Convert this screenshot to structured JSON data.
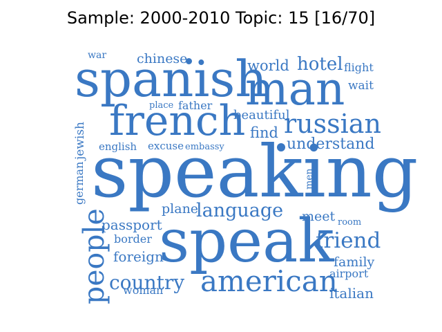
{
  "title": "Sample: 2000-2010 Topic: 15 [16/70]",
  "word_color": "#3a78c3",
  "words": [
    "war",
    "chinese",
    "world",
    "hotel",
    "flight",
    "spanish",
    "man",
    "wait",
    "place",
    "father",
    "beautiful",
    "french",
    "russian",
    "jewish",
    "find",
    "understand",
    "english",
    "excuse",
    "embassy",
    "german",
    "speaking",
    "men",
    "plane",
    "language",
    "meet",
    "room",
    "passport",
    "people",
    "border",
    "speak",
    "friend",
    "foreign",
    "family",
    "airport",
    "country",
    "american",
    "woman",
    "italian"
  ]
}
